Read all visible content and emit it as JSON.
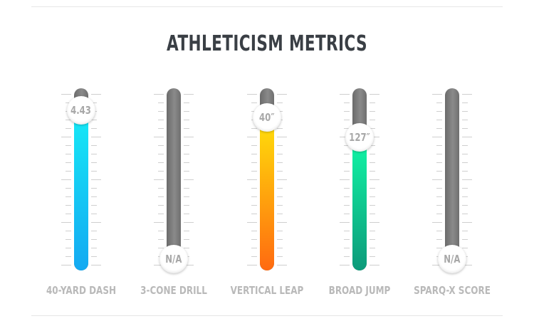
{
  "title": "ATHLETICISM METRICS",
  "metrics": [
    {
      "label": "40-YARD DASH",
      "value": "4.43",
      "fill_fraction": 0.88,
      "fill_colors": [
        "#16eaf6",
        "#14a9f2"
      ]
    },
    {
      "label": "3-CONE DRILL",
      "value": "N/A",
      "fill_fraction": 0,
      "fill_colors": [
        "#8a8a8a",
        "#6b6b6b"
      ]
    },
    {
      "label": "VERTICAL LEAP",
      "value": "40″",
      "fill_fraction": 0.84,
      "fill_colors": [
        "#ffe10a",
        "#ff6a10"
      ]
    },
    {
      "label": "BROAD JUMP",
      "value": "127″",
      "fill_fraction": 0.73,
      "fill_colors": [
        "#11f7a6",
        "#0d9a7a"
      ]
    },
    {
      "label": "SPARQ-X SCORE",
      "value": "N/A",
      "fill_fraction": 0,
      "fill_colors": [
        "#8a8a8a",
        "#6b6b6b"
      ]
    }
  ]
}
